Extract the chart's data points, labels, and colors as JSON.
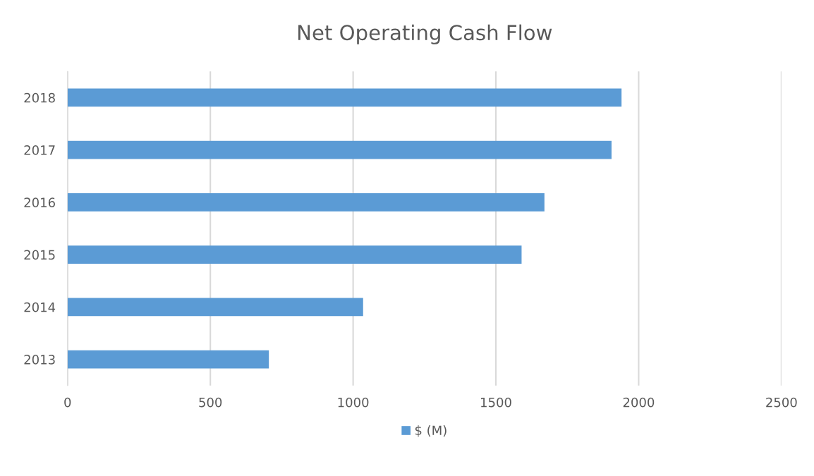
{
  "chart_data": {
    "type": "bar",
    "orientation": "horizontal",
    "title": "Net Operating Cash Flow",
    "categories": [
      "2018",
      "2017",
      "2016",
      "2015",
      "2014",
      "2013"
    ],
    "series": [
      {
        "name": "$ (M)",
        "color": "#5b9bd5",
        "values": [
          1940,
          1905,
          1670,
          1590,
          1035,
          705
        ]
      }
    ],
    "xlim": [
      0,
      2500
    ],
    "xticks": [
      0,
      500,
      1000,
      1500,
      2000,
      2500
    ],
    "grid": "x",
    "legend": "bottom"
  }
}
